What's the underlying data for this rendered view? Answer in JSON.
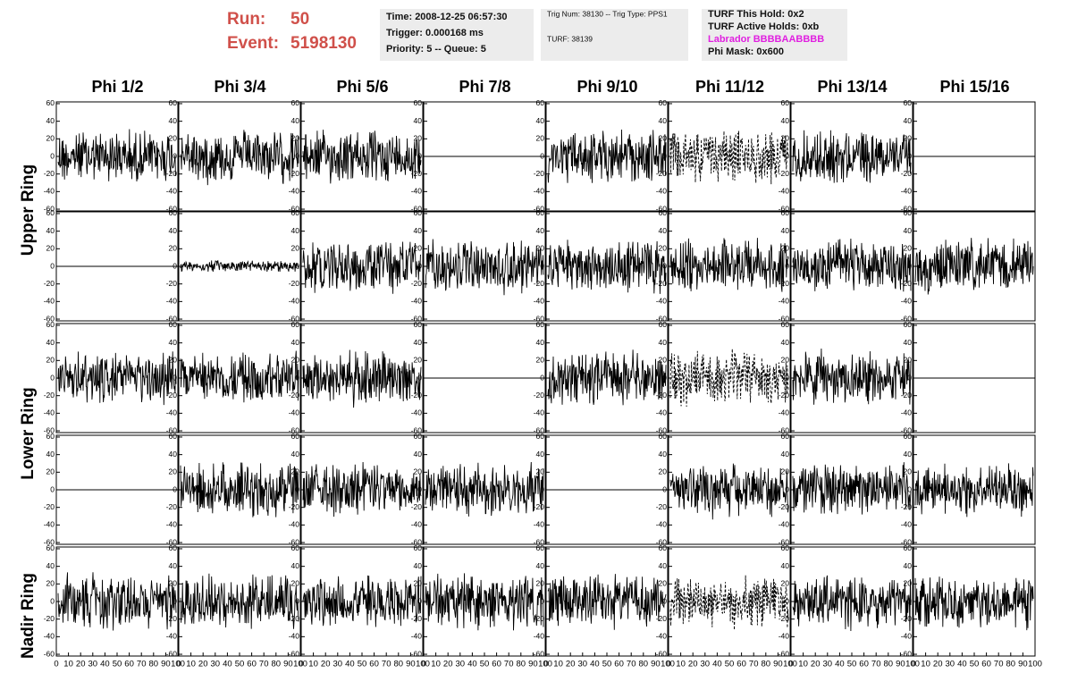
{
  "header": {
    "run_label": "Run:",
    "run": "50",
    "event_label": "Event:",
    "event": "5198130"
  },
  "info": [
    [
      "Time: 2008-12-25 06:57:30",
      "Trigger: 0.000168 ms",
      "Priority: 5 -- Queue: 5"
    ],
    [
      "Trig Num: 38130 -- Trig Type: PPS1",
      "TURF: 38139"
    ],
    [
      "TURF This Hold: 0x2",
      "TURF Active Holds: 0xb",
      "Labrador BBBBAABBBB",
      "Phi Mask: 0x600"
    ]
  ],
  "columns": [
    "Phi 1/2",
    "Phi 3/4",
    "Phi 5/6",
    "Phi 7/8",
    "Phi 9/10",
    "Phi 11/12",
    "Phi 13/14",
    "Phi 15/16"
  ],
  "rings": [
    "Upper Ring",
    "Lower Ring",
    "Nadir Ring"
  ],
  "ylim": [
    -62,
    62
  ],
  "yticks": [
    60,
    40,
    20,
    0,
    -20,
    -40,
    -60
  ],
  "xlim": [
    0,
    100
  ],
  "xticks": [
    0,
    10,
    20,
    30,
    40,
    50,
    60,
    70,
    80,
    90,
    100
  ]
}
